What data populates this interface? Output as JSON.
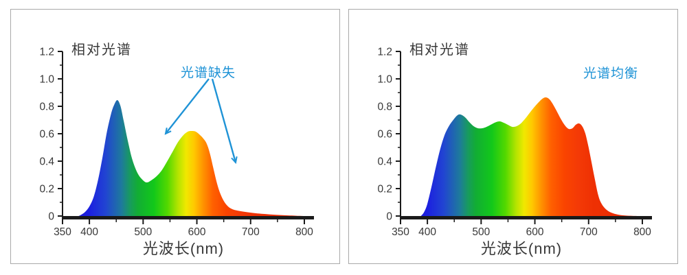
{
  "page": {
    "background": "#ffffff",
    "panel_border": "#a9a9a9",
    "axis_color": "#1a1a1a",
    "text_color": "#383838",
    "annotation_color": "#1f93d6"
  },
  "spectrum_gradient": [
    [
      380,
      "#1b1bd8"
    ],
    [
      400,
      "#1c20e0"
    ],
    [
      430,
      "#2144d2"
    ],
    [
      460,
      "#1e7a9c"
    ],
    [
      475,
      "#189a60"
    ],
    [
      490,
      "#12ad34"
    ],
    [
      520,
      "#12c81a"
    ],
    [
      545,
      "#52d800"
    ],
    [
      565,
      "#b4e400"
    ],
    [
      580,
      "#f0e800"
    ],
    [
      595,
      "#ffc800"
    ],
    [
      610,
      "#ff9800"
    ],
    [
      630,
      "#ff6000"
    ],
    [
      655,
      "#fa4400"
    ],
    [
      680,
      "#f43a06"
    ],
    [
      710,
      "#ee3003"
    ],
    [
      800,
      "#e82a05"
    ]
  ],
  "chart_data": [
    {
      "type": "area",
      "title": "相对光谱",
      "xlabel": "光波长(nm)",
      "x_range": [
        350,
        800
      ],
      "y_range": [
        0,
        1.2
      ],
      "grid": false,
      "x_ticks": {
        "major": [
          350,
          400,
          500,
          600,
          700,
          800
        ],
        "labels": [
          "350",
          "400",
          "500",
          "600",
          "700",
          "800"
        ],
        "minor": [
          450,
          550,
          650,
          750
        ]
      },
      "y_ticks": {
        "major": [
          0,
          0.2,
          0.4,
          0.6,
          0.8,
          1.0,
          1.2
        ],
        "labels": [
          "0",
          "0.2",
          "0.4",
          "0.6",
          "0.8",
          "1.0",
          "1.2"
        ],
        "minor": [
          0.1,
          0.3,
          0.5,
          0.7,
          0.9,
          1.1
        ]
      },
      "annotation": {
        "text": "光谱缺失",
        "color": "#1f93d6",
        "arrows": [
          {
            "from": [
              288,
              101
            ],
            "to": [
              225,
              181
            ]
          },
          {
            "from": [
              293,
              101
            ],
            "to": [
              327,
              223
            ]
          }
        ]
      },
      "points": [
        [
          380,
          0
        ],
        [
          385,
          0.01
        ],
        [
          392,
          0.03
        ],
        [
          400,
          0.07
        ],
        [
          408,
          0.14
        ],
        [
          416,
          0.26
        ],
        [
          424,
          0.42
        ],
        [
          432,
          0.6
        ],
        [
          440,
          0.74
        ],
        [
          446,
          0.81
        ],
        [
          452,
          0.845
        ],
        [
          458,
          0.8
        ],
        [
          464,
          0.69
        ],
        [
          472,
          0.54
        ],
        [
          480,
          0.41
        ],
        [
          490,
          0.31
        ],
        [
          500,
          0.26
        ],
        [
          507,
          0.245
        ],
        [
          515,
          0.26
        ],
        [
          525,
          0.29
        ],
        [
          535,
          0.335
        ],
        [
          545,
          0.4
        ],
        [
          555,
          0.47
        ],
        [
          565,
          0.54
        ],
        [
          575,
          0.59
        ],
        [
          583,
          0.615
        ],
        [
          590,
          0.62
        ],
        [
          598,
          0.615
        ],
        [
          606,
          0.59
        ],
        [
          612,
          0.565
        ],
        [
          618,
          0.53
        ],
        [
          624,
          0.46
        ],
        [
          630,
          0.36
        ],
        [
          636,
          0.26
        ],
        [
          642,
          0.18
        ],
        [
          650,
          0.11
        ],
        [
          658,
          0.07
        ],
        [
          666,
          0.05
        ],
        [
          675,
          0.04
        ],
        [
          690,
          0.03
        ],
        [
          710,
          0.02
        ],
        [
          735,
          0.012
        ],
        [
          760,
          0.006
        ],
        [
          785,
          0.002
        ],
        [
          800,
          0
        ]
      ]
    },
    {
      "type": "area",
      "title": "相对光谱",
      "xlabel": "光波长(nm)",
      "x_range": [
        350,
        800
      ],
      "y_range": [
        0,
        1.2
      ],
      "grid": false,
      "x_ticks": {
        "major": [
          350,
          400,
          500,
          600,
          700,
          800
        ],
        "labels": [
          "350",
          "400",
          "500",
          "600",
          "700",
          "800"
        ],
        "minor": [
          450,
          550,
          650,
          750
        ]
      },
      "y_ticks": {
        "major": [
          0,
          0.2,
          0.4,
          0.6,
          0.8,
          1.0,
          1.2
        ],
        "labels": [
          "0",
          "0.2",
          "0.4",
          "0.6",
          "0.8",
          "1.0",
          "1.2"
        ],
        "minor": [
          0.1,
          0.3,
          0.5,
          0.7,
          0.9,
          1.1
        ]
      },
      "annotation": {
        "text": "光谱均衡",
        "color": "#1f93d6",
        "arrows": []
      },
      "points": [
        [
          388,
          0
        ],
        [
          394,
          0.03
        ],
        [
          400,
          0.09
        ],
        [
          408,
          0.22
        ],
        [
          416,
          0.36
        ],
        [
          424,
          0.49
        ],
        [
          432,
          0.59
        ],
        [
          440,
          0.655
        ],
        [
          448,
          0.7
        ],
        [
          456,
          0.735
        ],
        [
          462,
          0.74
        ],
        [
          470,
          0.72
        ],
        [
          478,
          0.685
        ],
        [
          486,
          0.655
        ],
        [
          494,
          0.64
        ],
        [
          502,
          0.64
        ],
        [
          510,
          0.65
        ],
        [
          520,
          0.67
        ],
        [
          528,
          0.685
        ],
        [
          535,
          0.69
        ],
        [
          542,
          0.68
        ],
        [
          550,
          0.665
        ],
        [
          558,
          0.65
        ],
        [
          566,
          0.655
        ],
        [
          574,
          0.675
        ],
        [
          582,
          0.71
        ],
        [
          590,
          0.75
        ],
        [
          598,
          0.79
        ],
        [
          606,
          0.825
        ],
        [
          614,
          0.855
        ],
        [
          620,
          0.865
        ],
        [
          626,
          0.855
        ],
        [
          632,
          0.825
        ],
        [
          640,
          0.77
        ],
        [
          648,
          0.71
        ],
        [
          656,
          0.66
        ],
        [
          663,
          0.635
        ],
        [
          670,
          0.64
        ],
        [
          676,
          0.665
        ],
        [
          682,
          0.675
        ],
        [
          688,
          0.655
        ],
        [
          694,
          0.6
        ],
        [
          700,
          0.5
        ],
        [
          706,
          0.38
        ],
        [
          712,
          0.26
        ],
        [
          718,
          0.15
        ],
        [
          724,
          0.09
        ],
        [
          732,
          0.05
        ],
        [
          742,
          0.025
        ],
        [
          755,
          0.01
        ],
        [
          770,
          0.003
        ],
        [
          790,
          0
        ]
      ]
    }
  ]
}
